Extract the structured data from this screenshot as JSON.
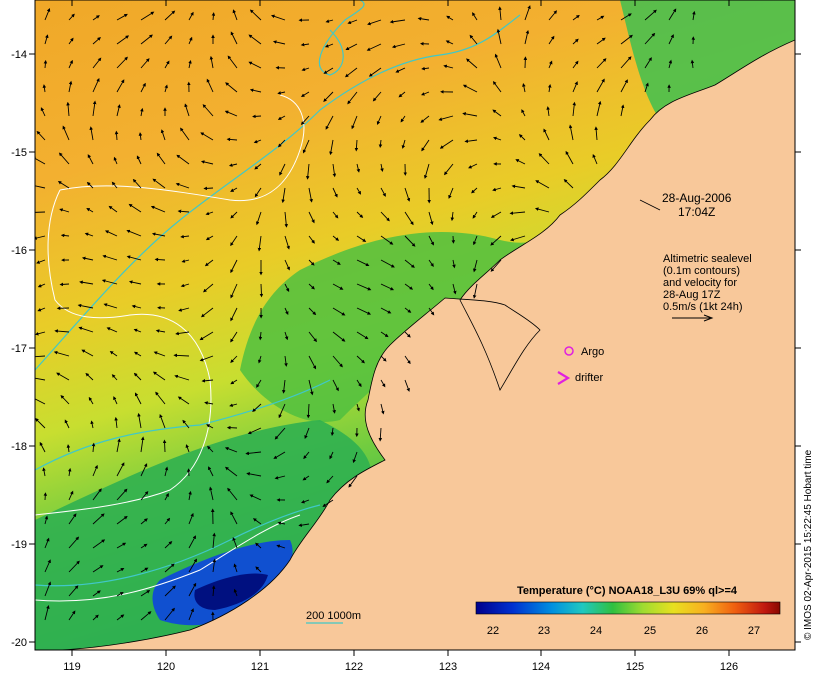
{
  "map": {
    "lon_ticks": [
      "119",
      "120",
      "121",
      "122",
      "123",
      "124",
      "125",
      "126"
    ],
    "lat_ticks": [
      "-14",
      "-15",
      "-16",
      "-17",
      "-18",
      "-19",
      "-20"
    ],
    "timestamp_date": "28-Aug-2006",
    "timestamp_time": "17:04Z",
    "legend_lines": [
      "Altimetric sealevel",
      "(0.1m contours)",
      "and velocity for",
      "28-Aug 17Z",
      "0.5m/s (1kt 24h)"
    ],
    "argo_label": "Argo",
    "drifter_label": "drifter",
    "bathymetry_label": "200  1000m",
    "colorbar": {
      "title": "Temperature (°C) NOAA18_L3U 69% ql>=4",
      "ticks": [
        "22",
        "23",
        "24",
        "25",
        "26",
        "27"
      ]
    },
    "credit": "© IMOS 02-Apr-2015 15:22:45 Hobart time",
    "colors": {
      "land": "#f8c89a",
      "warm_sea": "#f0a020",
      "mid_sea": "#c8e020",
      "cool_sea": "#20b040",
      "cold_sea": "#1040c0",
      "bathymetry": "#40c8c8",
      "sealevel_contour": "#ffffff",
      "marker": "#e020e0"
    }
  }
}
